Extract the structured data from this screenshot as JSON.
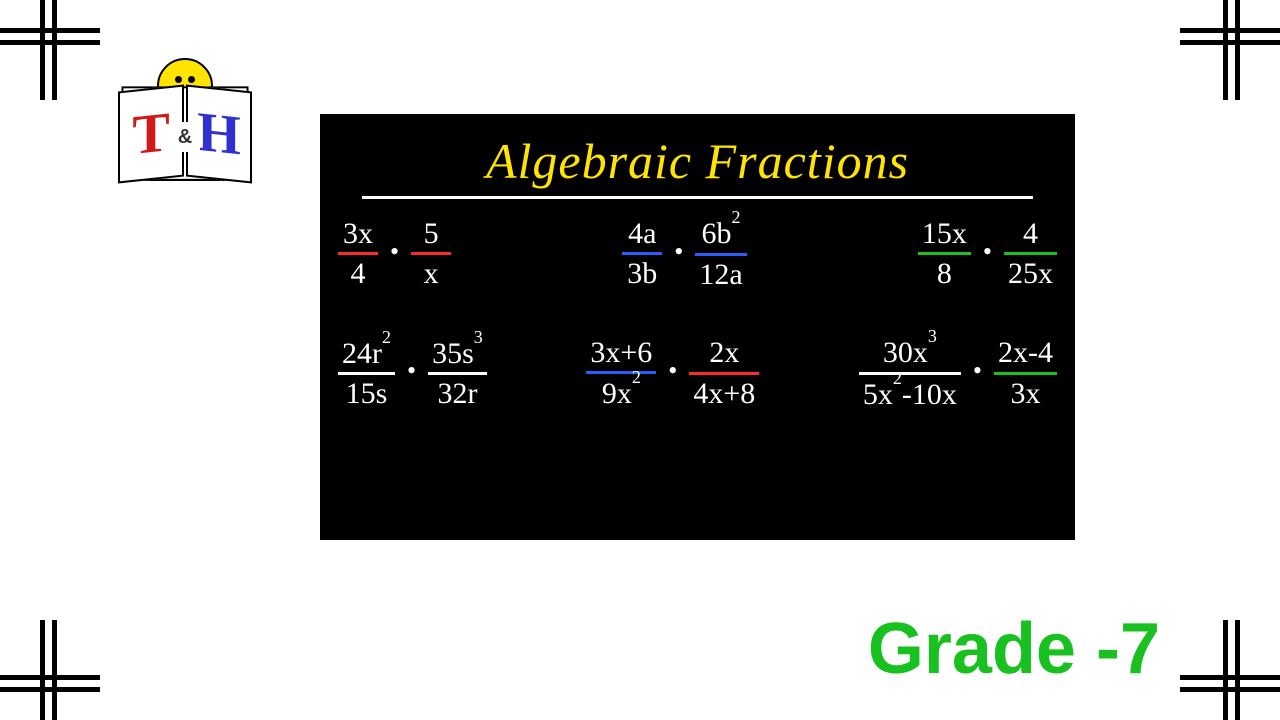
{
  "colors": {
    "background": "#ffffff",
    "board_bg": "#000000",
    "text_white": "#ffffff",
    "title_yellow": "#ffe400",
    "red": "#ff2a2a",
    "blue": "#2a5cff",
    "green": "#18c020",
    "grade_green": "#18c020",
    "logo_t": "#d01818",
    "logo_h": "#3030d0",
    "smiley": "#ffe400"
  },
  "logo": {
    "left": "T",
    "amp": "&",
    "right": "H"
  },
  "board": {
    "title": "Algebraic Fractions",
    "title_fontsize": 50,
    "problems_fontsize": 30,
    "rows": [
      [
        {
          "f1": {
            "num": "3x",
            "den": "4",
            "bar": "#ff2a2a"
          },
          "f2": {
            "num": "5",
            "den": "x",
            "bar": "#ff2a2a"
          }
        },
        {
          "f1": {
            "num": "4a",
            "den": "3b",
            "bar": "#2a5cff"
          },
          "f2": {
            "num": "6b<sup>2</sup>",
            "den": "12a",
            "bar": "#2a5cff"
          }
        },
        {
          "f1": {
            "num": "15x",
            "den": "8",
            "bar": "#18c020"
          },
          "f2": {
            "num": "4",
            "den": "25x",
            "bar": "#18c020"
          }
        }
      ],
      [
        {
          "f1": {
            "num": "24r<sup>2</sup>",
            "den": "15s",
            "bar": "#ffffff"
          },
          "f2": {
            "num": "35s<sup>3</sup>",
            "den": "32r",
            "bar": "#ffffff"
          }
        },
        {
          "f1": {
            "num": "3x+6",
            "den": "9x<sup>2</sup>",
            "bar": "#2a5cff"
          },
          "f2": {
            "num": "2x",
            "den": "4x+8",
            "bar": "#ff2a2a"
          }
        },
        {
          "f1": {
            "num": "30x<sup>3</sup>",
            "den": "5x<sup>2</sup>-10x",
            "bar": "#ffffff"
          },
          "f2": {
            "num": "2x-4",
            "den": "3x",
            "bar": "#18c020"
          }
        }
      ]
    ]
  },
  "grade": "Grade -7"
}
